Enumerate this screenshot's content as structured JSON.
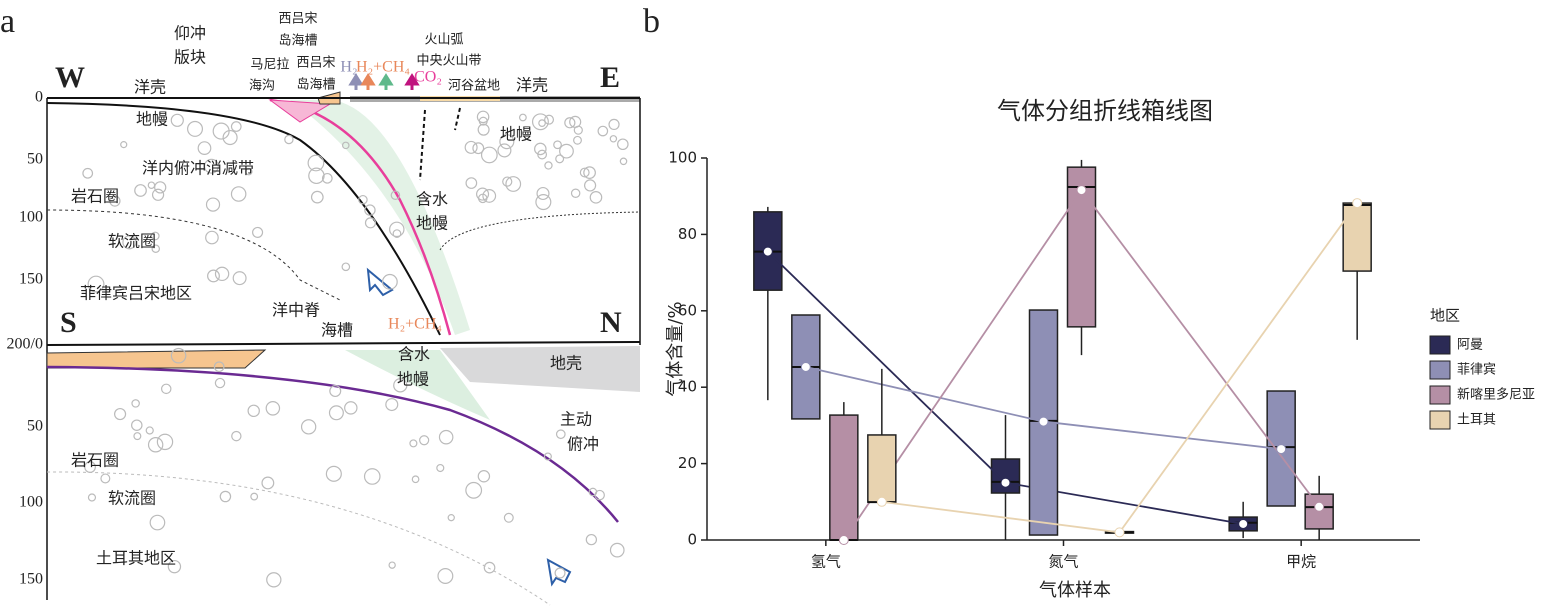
{
  "diagram": {
    "panel_label": "a",
    "top_west": "W",
    "top_east": "E",
    "bottom_south": "S",
    "bottom_north": "N",
    "top_depths": [
      "0",
      "50",
      "100",
      "150",
      "200/0"
    ],
    "bottom_depths": [
      "50",
      "100",
      "150"
    ],
    "labels": [
      "仰冲",
      "版块",
      "西吕宋",
      "岛海槽",
      "马尼拉",
      "海沟",
      "西吕宋",
      "岛海槽",
      "火山弧",
      "中央火山带",
      "河谷盆地",
      "洋壳",
      "洋壳",
      "地幔",
      "地幔",
      "洋内俯冲消减带",
      "岩石圈",
      "软流圈",
      "含水",
      "地幔",
      "菲律宾吕宋地区",
      "洋中脊",
      "海槽",
      "含水",
      "地幔",
      "地壳",
      "主动",
      "俯冲",
      "岩石圈",
      "软流圈",
      "土耳其地区"
    ],
    "gas_labels": [
      "H₂",
      "H₂+CH₄",
      "CO₂",
      "H₂+CH₄"
    ]
  },
  "chart_data": {
    "type": "box",
    "panel_label": "b",
    "title": "气体分组折线箱线图",
    "x_label": "气体样本",
    "y_label": "气体含量/%",
    "legend_title": "地区",
    "categories": [
      "氢气",
      "氮气",
      "甲烷"
    ],
    "ylim": [
      0,
      100
    ],
    "yticks": [
      0,
      20,
      40,
      60,
      80,
      100
    ],
    "series": [
      {
        "name": "阿曼",
        "color": "#2b2a55",
        "values": [
          {
            "min": 36.6,
            "q1": 65.4,
            "median": 75.5,
            "q3": 85.9,
            "max": 87.2,
            "mean": 75.5
          },
          {
            "min": 0,
            "q1": 12.3,
            "median": 15.2,
            "q3": 21.2,
            "max": 32.7,
            "mean": 15
          },
          {
            "min": 0.5,
            "q1": 2.4,
            "median": 4.5,
            "q3": 6,
            "max": 10,
            "mean": 4.2
          }
        ]
      },
      {
        "name": "菲律宾",
        "color": "#8e8fb5",
        "values": [
          {
            "min": 31.7,
            "q1": 31.7,
            "median": 45.3,
            "q3": 58.9,
            "max": 58.9,
            "mean": 45.3
          },
          {
            "min": 1.3,
            "q1": 1.3,
            "median": 31.2,
            "q3": 60.2,
            "max": 60.2,
            "mean": 31
          },
          {
            "min": 8.9,
            "q1": 8.9,
            "median": 24.3,
            "q3": 39,
            "max": 39,
            "mean": 23.8
          }
        ]
      },
      {
        "name": "新喀里多尼亚",
        "color": "#b58fa5",
        "values": [
          {
            "min": 0,
            "q1": 0,
            "median": 0,
            "q3": 32.7,
            "max": 36.1,
            "mean": 0
          },
          {
            "min": 48.4,
            "q1": 55.8,
            "median": 92.4,
            "q3": 97.6,
            "max": 99.5,
            "mean": 91.6
          },
          {
            "min": 0,
            "q1": 2.9,
            "median": 8.6,
            "q3": 12,
            "max": 16.8,
            "mean": 8.7
          }
        ]
      },
      {
        "name": "土耳其",
        "color": "#e8d3b0",
        "values": [
          {
            "min": 9.9,
            "q1": 9.9,
            "median": 9.9,
            "q3": 27.5,
            "max": 44.8,
            "mean": 10
          },
          {
            "min": 1.8,
            "q1": 1.8,
            "median": 2,
            "q3": 2.2,
            "max": 2.2,
            "mean": 2
          },
          {
            "min": 52.4,
            "q1": 70.4,
            "median": 87.7,
            "q3": 88.2,
            "max": 88.2,
            "mean": 88.2
          }
        ]
      }
    ]
  }
}
